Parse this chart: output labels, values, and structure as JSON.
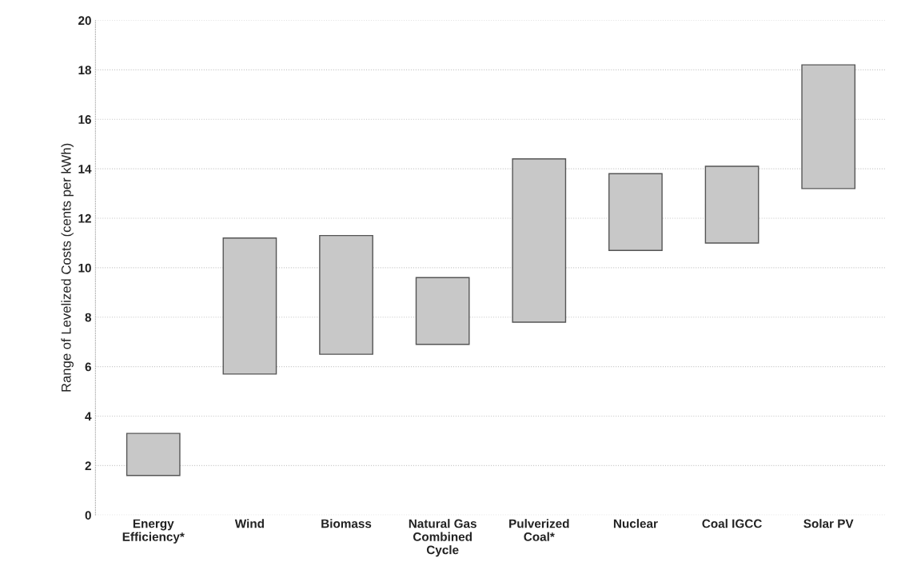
{
  "chart_data": {
    "type": "bar",
    "ylabel": "Range of Levelized Costs (cents per kWh)",
    "categories": [
      "Energy\nEfficiency*",
      "Wind",
      "Biomass",
      "Natural Gas\nCombined\nCycle",
      "Pulverized\nCoal*",
      "Nuclear",
      "Coal IGCC",
      "Solar PV"
    ],
    "base": [
      1.6,
      5.7,
      6.5,
      6.9,
      7.8,
      10.7,
      11.0,
      13.2
    ],
    "values": [
      1.7,
      5.5,
      4.8,
      2.7,
      6.6,
      3.1,
      3.1,
      5.0
    ],
    "color": "#c8c8c8",
    "ylim": [
      0,
      20
    ],
    "yticks": [
      0,
      2,
      4,
      6,
      8,
      10,
      12,
      14,
      16,
      18,
      20
    ],
    "grid": "y"
  }
}
